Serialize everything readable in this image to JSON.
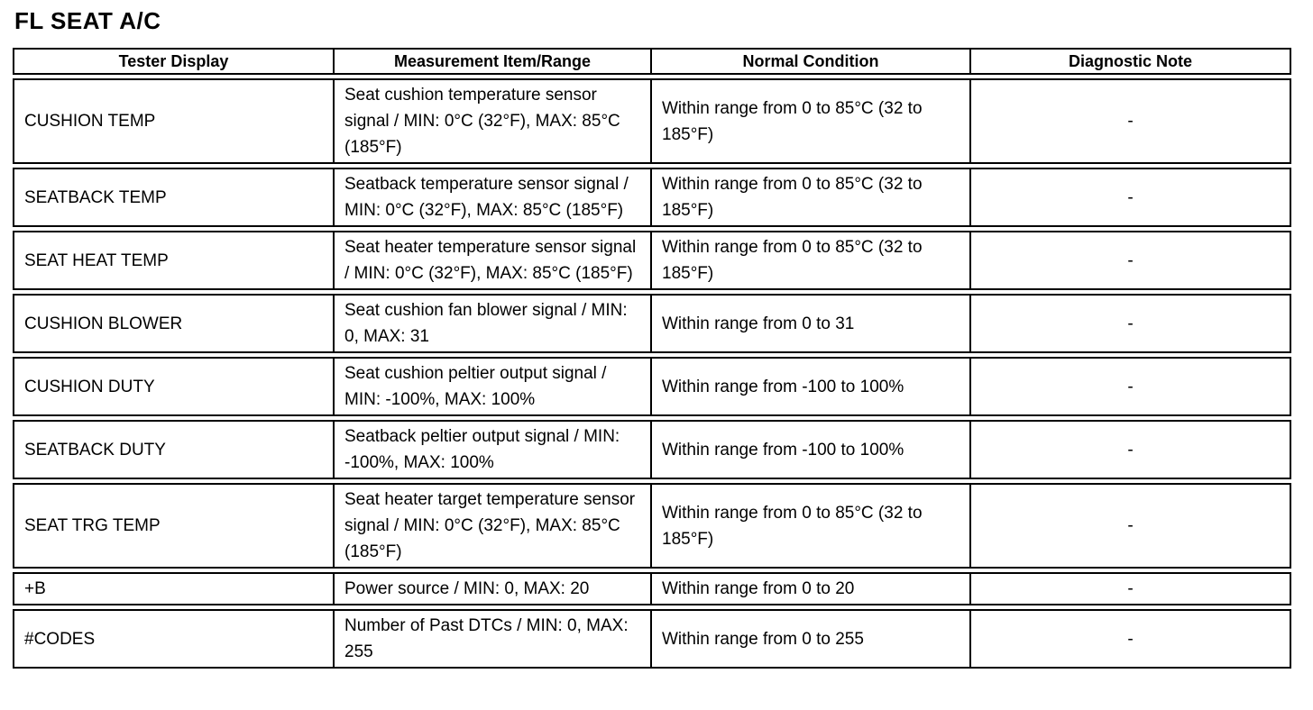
{
  "page_title": "FL SEAT A/C",
  "table": {
    "headers": [
      "Tester Display",
      "Measurement Item/Range",
      "Normal Condition",
      "Diagnostic Note"
    ],
    "rows": [
      {
        "tester_display": "CUSHION TEMP",
        "measurement_item_range": "Seat cushion temperature sensor signal / MIN: 0°C (32°F), MAX: 85°C (185°F)",
        "normal_condition": "Within range from 0 to 85°C (32 to 185°F)",
        "diagnostic_note": "-"
      },
      {
        "tester_display": "SEATBACK TEMP",
        "measurement_item_range": "Seatback temperature sensor signal / MIN: 0°C (32°F), MAX: 85°C (185°F)",
        "normal_condition": "Within range from 0 to 85°C (32 to 185°F)",
        "diagnostic_note": "-"
      },
      {
        "tester_display": "SEAT HEAT TEMP",
        "measurement_item_range": "Seat heater temperature sensor signal / MIN: 0°C (32°F), MAX: 85°C (185°F)",
        "normal_condition": "Within range from 0 to 85°C (32 to 185°F)",
        "diagnostic_note": "-"
      },
      {
        "tester_display": "CUSHION BLOWER",
        "measurement_item_range": "Seat cushion fan blower signal / MIN: 0, MAX: 31",
        "normal_condition": "Within range from 0 to 31",
        "diagnostic_note": "-"
      },
      {
        "tester_display": "CUSHION DUTY",
        "measurement_item_range": "Seat cushion peltier output signal / MIN: -100%, MAX: 100%",
        "normal_condition": "Within range from -100 to 100%",
        "diagnostic_note": "-"
      },
      {
        "tester_display": "SEATBACK DUTY",
        "measurement_item_range": "Seatback peltier output signal / MIN: -100%, MAX: 100%",
        "normal_condition": "Within range from -100 to 100%",
        "diagnostic_note": "-"
      },
      {
        "tester_display": "SEAT TRG TEMP",
        "measurement_item_range": "Seat heater target temperature sensor signal / MIN: 0°C (32°F), MAX: 85°C (185°F)",
        "normal_condition": "Within range from 0 to 85°C (32 to 185°F)",
        "diagnostic_note": "-"
      },
      {
        "tester_display": "+B",
        "measurement_item_range": "Power source / MIN: 0, MAX: 20",
        "normal_condition": "Within range from 0 to 20",
        "diagnostic_note": "-"
      },
      {
        "tester_display": "#CODES",
        "measurement_item_range": "Number of Past DTCs / MIN: 0, MAX: 255",
        "normal_condition": "Within range from 0 to 255",
        "diagnostic_note": "-"
      }
    ]
  }
}
